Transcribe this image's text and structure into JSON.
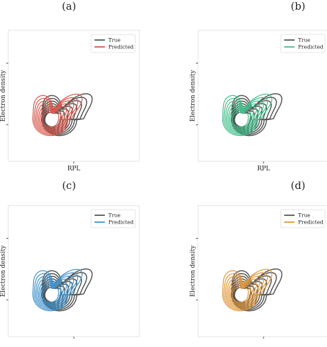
{
  "chart_data": [
    {
      "type": "contour",
      "panel_label": "(a)",
      "xlabel": "RPL",
      "ylabel": "Electron density",
      "legend": {
        "placement": "top-right",
        "entries": [
          "True",
          "Predicted"
        ]
      },
      "grid": false,
      "series": [
        {
          "name": "True",
          "color": "#555555",
          "levels": 8
        },
        {
          "name": "Predicted",
          "color": "#d9564a",
          "levels": 8
        }
      ]
    },
    {
      "type": "contour",
      "panel_label": "(b)",
      "xlabel": "RPL",
      "ylabel": "Electron density",
      "legend": {
        "placement": "top-right",
        "entries": [
          "True",
          "Predicted"
        ]
      },
      "grid": false,
      "series": [
        {
          "name": "True",
          "color": "#555555",
          "levels": 8
        },
        {
          "name": "Predicted",
          "color": "#3fbf8a",
          "levels": 8
        }
      ]
    },
    {
      "type": "contour",
      "panel_label": "(c)",
      "xlabel": "",
      "ylabel": "Electron density",
      "legend": {
        "placement": "top-right",
        "entries": [
          "True",
          "Predicted"
        ]
      },
      "grid": false,
      "series": [
        {
          "name": "True",
          "color": "#555555",
          "levels": 8
        },
        {
          "name": "Predicted",
          "color": "#3d92cc",
          "levels": 8
        }
      ]
    },
    {
      "type": "contour",
      "panel_label": "(d)",
      "xlabel": "",
      "ylabel": "Electron density",
      "legend": {
        "placement": "top-right",
        "entries": [
          "True",
          "Predicted"
        ]
      },
      "grid": false,
      "series": [
        {
          "name": "True",
          "color": "#555555",
          "levels": 8
        },
        {
          "name": "Predicted",
          "color": "#e0963a",
          "levels": 8
        }
      ]
    }
  ]
}
